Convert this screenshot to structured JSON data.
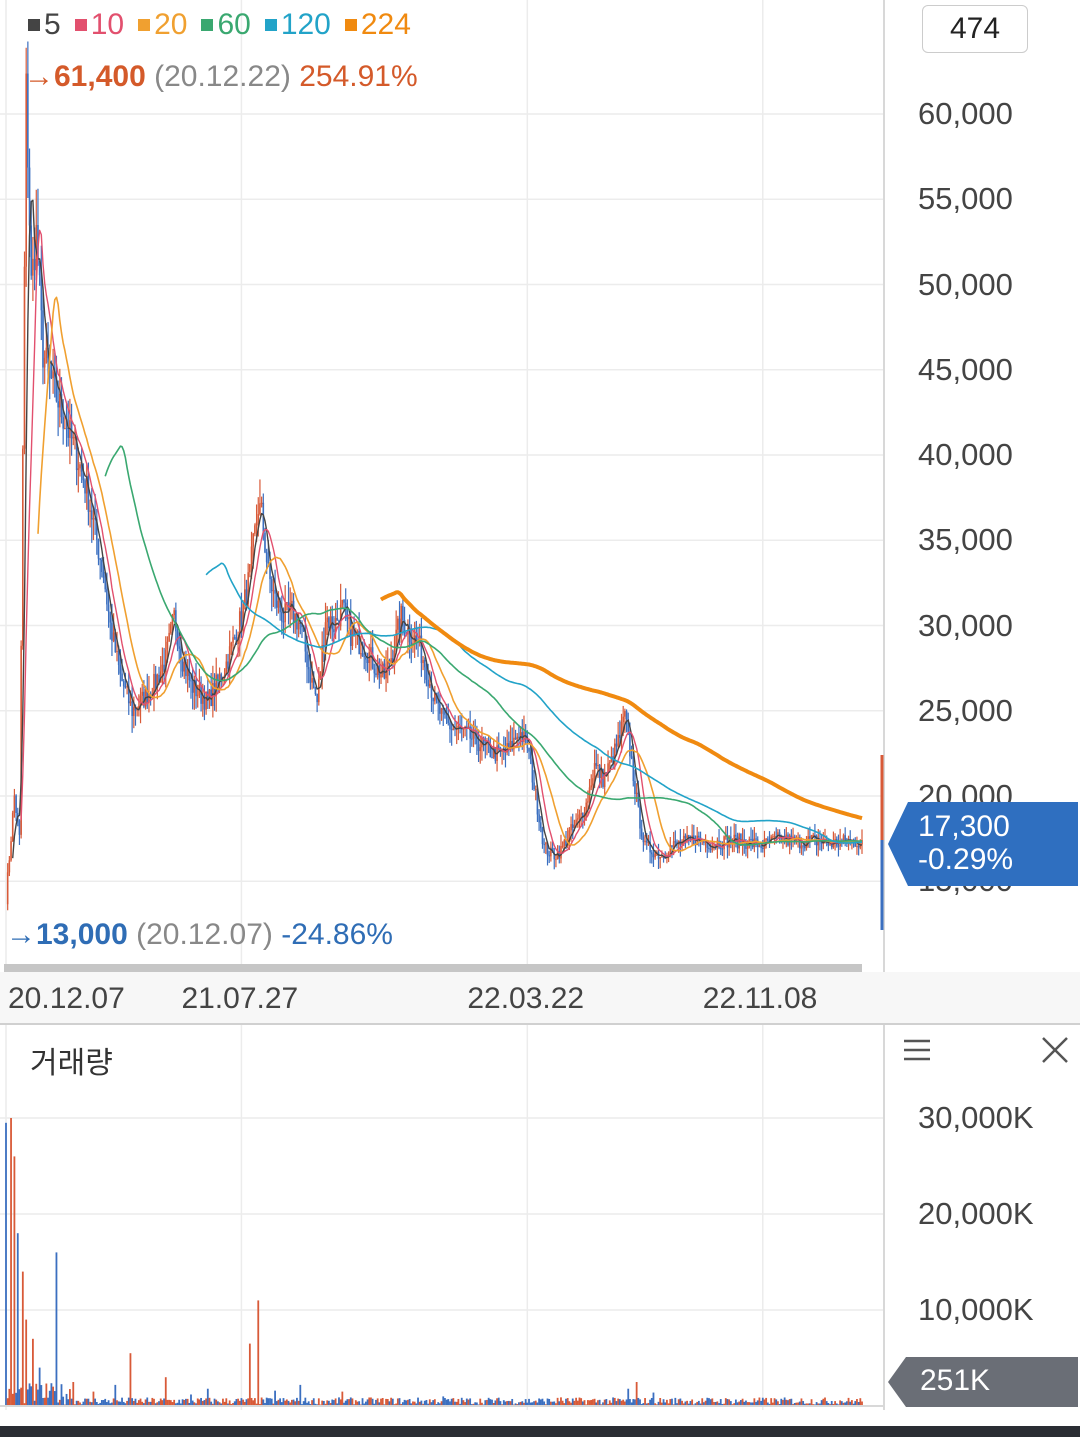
{
  "legend": [
    {
      "label": "5",
      "color": "#444444"
    },
    {
      "label": "10",
      "color": "#e2506e"
    },
    {
      "label": "20",
      "color": "#f0a030"
    },
    {
      "label": "60",
      "color": "#3aa870"
    },
    {
      "label": "120",
      "color": "#22a3c8"
    },
    {
      "label": "224",
      "color": "#f08a10"
    }
  ],
  "count_badge": "474",
  "high": {
    "arrow": "→",
    "price": "61,400",
    "date": "(20.12.22)",
    "pct": "254.91%"
  },
  "low": {
    "arrow": "→",
    "price": "13,000",
    "date": "(20.12.07)",
    "pct": "-24.86%"
  },
  "current": {
    "price": "17,300",
    "change": "-0.29%"
  },
  "volume_title": "거래량",
  "volume_current": "251K",
  "colors": {
    "up": "#d85a38",
    "down": "#3b6fc0",
    "tag_price": "#2f6fc0",
    "tag_volume": "#6a6e76"
  },
  "chart_data": [
    {
      "type": "line",
      "title": "",
      "y_unit": "KRW",
      "ylim": [
        12000,
        66000
      ],
      "y_ticks": [
        {
          "value": 60000,
          "label": "60,000"
        },
        {
          "value": 55000,
          "label": "55,000"
        },
        {
          "value": 50000,
          "label": "50,000"
        },
        {
          "value": 45000,
          "label": "45,000"
        },
        {
          "value": 40000,
          "label": "40,000"
        },
        {
          "value": 35000,
          "label": "35,000"
        },
        {
          "value": 30000,
          "label": "30,000"
        },
        {
          "value": 25000,
          "label": "25,000"
        },
        {
          "value": 20000,
          "label": "20,000"
        },
        {
          "value": 15000,
          "label": "15,000"
        }
      ],
      "x_tick_labels": [
        "20.12.07",
        "21.07.27",
        "22.03.22",
        "22.11.08"
      ],
      "x_tick_index": [
        0,
        140,
        310,
        450
      ],
      "grid": true,
      "n_bars": 510,
      "close_anchors": [
        [
          0,
          14000
        ],
        [
          5,
          20000
        ],
        [
          8,
          17500
        ],
        [
          10,
          40000
        ],
        [
          12,
          61400
        ],
        [
          15,
          50000
        ],
        [
          18,
          53000
        ],
        [
          22,
          46000
        ],
        [
          28,
          44000
        ],
        [
          35,
          42000
        ],
        [
          42,
          40000
        ],
        [
          48,
          38000
        ],
        [
          52,
          36000
        ],
        [
          58,
          33000
        ],
        [
          62,
          30000
        ],
        [
          68,
          27000
        ],
        [
          75,
          25000
        ],
        [
          80,
          25500
        ],
        [
          88,
          26500
        ],
        [
          95,
          28000
        ],
        [
          100,
          30500
        ],
        [
          105,
          28000
        ],
        [
          110,
          26500
        ],
        [
          115,
          26000
        ],
        [
          120,
          25500
        ],
        [
          125,
          26500
        ],
        [
          130,
          27500
        ],
        [
          135,
          29000
        ],
        [
          140,
          30500
        ],
        [
          145,
          33000
        ],
        [
          150,
          37000
        ],
        [
          152,
          36500
        ],
        [
          156,
          33000
        ],
        [
          160,
          31500
        ],
        [
          165,
          30500
        ],
        [
          170,
          30800
        ],
        [
          175,
          30000
        ],
        [
          180,
          27500
        ],
        [
          185,
          25500
        ],
        [
          190,
          30500
        ],
        [
          195,
          30000
        ],
        [
          200,
          31000
        ],
        [
          205,
          29500
        ],
        [
          210,
          29000
        ],
        [
          215,
          28500
        ],
        [
          220,
          27500
        ],
        [
          225,
          27000
        ],
        [
          230,
          28500
        ],
        [
          235,
          30500
        ],
        [
          240,
          29500
        ],
        [
          245,
          29000
        ],
        [
          250,
          27500
        ],
        [
          255,
          25500
        ],
        [
          260,
          24500
        ],
        [
          265,
          24000
        ],
        [
          270,
          23800
        ],
        [
          275,
          23500
        ],
        [
          280,
          23200
        ],
        [
          285,
          22800
        ],
        [
          290,
          22500
        ],
        [
          295,
          22500
        ],
        [
          300,
          22800
        ],
        [
          305,
          23800
        ],
        [
          310,
          23000
        ],
        [
          315,
          20000
        ],
        [
          320,
          17000
        ],
        [
          325,
          16500
        ],
        [
          330,
          16800
        ],
        [
          335,
          17800
        ],
        [
          340,
          18500
        ],
        [
          345,
          19500
        ],
        [
          350,
          21800
        ],
        [
          355,
          21000
        ],
        [
          360,
          22000
        ],
        [
          365,
          23500
        ],
        [
          368,
          24700
        ],
        [
          372,
          22000
        ],
        [
          376,
          19000
        ],
        [
          380,
          17000
        ],
        [
          385,
          16800
        ],
        [
          390,
          16500
        ],
        [
          395,
          17000
        ],
        [
          400,
          17200
        ],
        [
          405,
          17300
        ],
        [
          410,
          17500
        ],
        [
          420,
          17200
        ],
        [
          430,
          17400
        ],
        [
          440,
          17300
        ],
        [
          450,
          17100
        ],
        [
          460,
          17500
        ],
        [
          470,
          17300
        ],
        [
          480,
          17400
        ],
        [
          490,
          17200
        ],
        [
          500,
          17350
        ],
        [
          509,
          17300
        ]
      ],
      "moving_averages": [
        {
          "name": "5",
          "window": 5,
          "color": "#444444",
          "width": 1.4
        },
        {
          "name": "10",
          "window": 10,
          "color": "#e2506e",
          "width": 1.4
        },
        {
          "name": "20",
          "window": 20,
          "color": "#f0a030",
          "width": 1.6
        },
        {
          "name": "60",
          "window": 60,
          "color": "#3aa870",
          "width": 1.6
        },
        {
          "name": "120",
          "window": 120,
          "color": "#22a3c8",
          "width": 1.6
        },
        {
          "name": "224",
          "window": 224,
          "color": "#f08a10",
          "width": 4
        }
      ]
    },
    {
      "type": "bar",
      "title": "거래량",
      "ylim": [
        0,
        33000
      ],
      "y_unit": "K",
      "y_ticks": [
        {
          "value": 30000,
          "label": "30,000K"
        },
        {
          "value": 20000,
          "label": "20,000K"
        },
        {
          "value": 10000,
          "label": "10,000K"
        }
      ],
      "spikes": [
        [
          0,
          29500
        ],
        [
          3,
          30000
        ],
        [
          5,
          26000
        ],
        [
          7,
          18000
        ],
        [
          10,
          14000
        ],
        [
          12,
          9000
        ],
        [
          16,
          7000
        ],
        [
          20,
          4000
        ],
        [
          30,
          16000
        ],
        [
          40,
          2500
        ],
        [
          52,
          1500
        ],
        [
          65,
          2200
        ],
        [
          74,
          5500
        ],
        [
          95,
          3000
        ],
        [
          110,
          1200
        ],
        [
          120,
          1800
        ],
        [
          145,
          6500
        ],
        [
          150,
          11000
        ],
        [
          160,
          1600
        ],
        [
          175,
          2200
        ],
        [
          200,
          1500
        ],
        [
          260,
          1000
        ],
        [
          330,
          900
        ],
        [
          370,
          1800
        ],
        [
          375,
          2500
        ],
        [
          385,
          1400
        ],
        [
          400,
          700
        ]
      ],
      "baseline_range": [
        150,
        900
      ]
    }
  ]
}
